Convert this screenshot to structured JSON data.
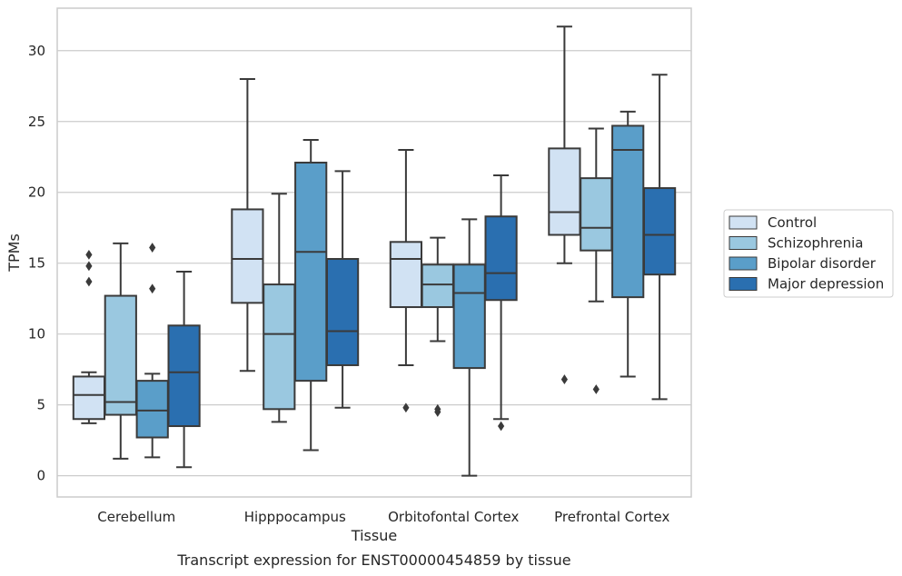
{
  "chart_data": {
    "type": "box",
    "title": "",
    "caption": "Transcript expression for ENST00000454859 by tissue",
    "xlabel": "Tissue",
    "ylabel": "TPMs",
    "ylim": [
      -1.5,
      33
    ],
    "yticks": [
      0,
      5,
      10,
      15,
      20,
      25,
      30
    ],
    "grid": "horizontal",
    "legend_position": "center-right",
    "categories": [
      "Cerebellum",
      "Hipppocampus",
      "Orbitofontal Cortex",
      "Prefrontal Cortex"
    ],
    "series": [
      {
        "name": "Control",
        "color": "#d1e2f3",
        "boxes": [
          {
            "whislo": 3.7,
            "q1": 4.0,
            "med": 5.7,
            "q3": 7.0,
            "whishi": 7.3,
            "fliers": [
              15.6,
              14.8,
              13.7
            ]
          },
          {
            "whislo": 7.4,
            "q1": 12.2,
            "med": 15.3,
            "q3": 18.8,
            "whishi": 28.0,
            "fliers": []
          },
          {
            "whislo": 7.8,
            "q1": 11.9,
            "med": 15.3,
            "q3": 16.5,
            "whishi": 23.0,
            "fliers": [
              4.8
            ]
          },
          {
            "whislo": 15.0,
            "q1": 17.0,
            "med": 18.6,
            "q3": 23.1,
            "whishi": 31.7,
            "fliers": [
              6.8
            ]
          }
        ]
      },
      {
        "name": "Schizophrenia",
        "color": "#9ac8e0",
        "boxes": [
          {
            "whislo": 1.2,
            "q1": 4.3,
            "med": 5.2,
            "q3": 12.7,
            "whishi": 16.4,
            "fliers": []
          },
          {
            "whislo": 3.8,
            "q1": 4.7,
            "med": 10.0,
            "q3": 13.5,
            "whishi": 19.9,
            "fliers": []
          },
          {
            "whislo": 9.5,
            "q1": 11.9,
            "med": 13.5,
            "q3": 14.9,
            "whishi": 16.8,
            "fliers": [
              4.7,
              4.5
            ]
          },
          {
            "whislo": 12.3,
            "q1": 15.9,
            "med": 17.5,
            "q3": 21.0,
            "whishi": 24.5,
            "fliers": [
              6.1
            ]
          }
        ]
      },
      {
        "name": "Bipolar disorder",
        "color": "#5a9ec9",
        "boxes": [
          {
            "whislo": 1.3,
            "q1": 2.7,
            "med": 4.6,
            "q3": 6.7,
            "whishi": 7.2,
            "fliers": [
              16.1,
              13.2
            ]
          },
          {
            "whislo": 1.8,
            "q1": 6.7,
            "med": 15.8,
            "q3": 22.1,
            "whishi": 23.7,
            "fliers": []
          },
          {
            "whislo": 0.0,
            "q1": 7.6,
            "med": 12.9,
            "q3": 14.9,
            "whishi": 18.1,
            "fliers": []
          },
          {
            "whislo": 7.0,
            "q1": 12.6,
            "med": 23.0,
            "q3": 24.7,
            "whishi": 25.7,
            "fliers": []
          }
        ]
      },
      {
        "name": "Major depression",
        "color": "#2a6fb0",
        "boxes": [
          {
            "whislo": 0.6,
            "q1": 3.5,
            "med": 7.3,
            "q3": 10.6,
            "whishi": 14.4,
            "fliers": []
          },
          {
            "whislo": 4.8,
            "q1": 7.8,
            "med": 10.2,
            "q3": 15.3,
            "whishi": 21.5,
            "fliers": []
          },
          {
            "whislo": 4.0,
            "q1": 12.4,
            "med": 14.3,
            "q3": 18.3,
            "whishi": 21.2,
            "fliers": [
              3.5
            ]
          },
          {
            "whislo": 5.4,
            "q1": 14.2,
            "med": 17.0,
            "q3": 20.3,
            "whishi": 28.3,
            "fliers": []
          }
        ]
      }
    ]
  }
}
